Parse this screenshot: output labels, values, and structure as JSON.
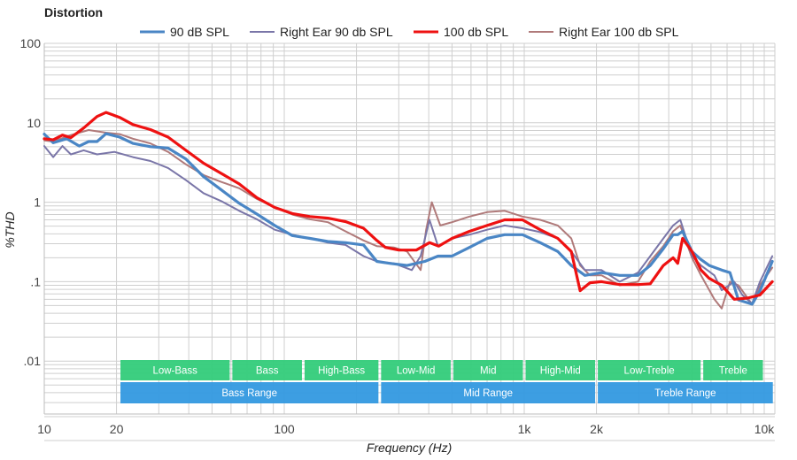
{
  "chart_data": {
    "type": "line",
    "title": "Distortion",
    "xlabel": "Frequency (Hz)",
    "ylabel": "%THD",
    "xscale": "log",
    "yscale": "log",
    "xlim": [
      10,
      11000
    ],
    "ylim": [
      0.001,
      100
    ],
    "grid": true,
    "legend_position": "top-center",
    "x_ticks": [
      {
        "value": 10,
        "label": "10"
      },
      {
        "value": 20,
        "label": "20"
      },
      {
        "value": 100,
        "label": "100"
      },
      {
        "value": 1000,
        "label": "1k"
      },
      {
        "value": 2000,
        "label": "2k"
      },
      {
        "value": 10000,
        "label": "10k"
      }
    ],
    "y_ticks": [
      {
        "value": 100,
        "label": "100"
      },
      {
        "value": 10,
        "label": "10"
      },
      {
        "value": 1,
        "label": "1"
      },
      {
        "value": 0.1,
        "label": ".1"
      },
      {
        "value": 0.01,
        "label": ".01"
      }
    ],
    "bands": [
      {
        "label": "Low-Bass",
        "from": 20,
        "to": 60,
        "row": "sub",
        "color": "#33cc7a"
      },
      {
        "label": "Bass",
        "from": 60,
        "to": 120,
        "row": "sub",
        "color": "#33cc7a"
      },
      {
        "label": "High-Bass",
        "from": 120,
        "to": 250,
        "row": "sub",
        "color": "#33cc7a"
      },
      {
        "label": "Low-Mid",
        "from": 250,
        "to": 500,
        "row": "sub",
        "color": "#33cc7a"
      },
      {
        "label": "Mid",
        "from": 500,
        "to": 1000,
        "row": "sub",
        "color": "#33cc7a"
      },
      {
        "label": "High-Mid",
        "from": 1000,
        "to": 2000,
        "row": "sub",
        "color": "#33cc7a"
      },
      {
        "label": "Low-Treble",
        "from": 2000,
        "to": 5500,
        "row": "sub",
        "color": "#33cc7a"
      },
      {
        "label": "Treble",
        "from": 5500,
        "to": 10000,
        "row": "sub",
        "color": "#33cc7a"
      },
      {
        "label": "Bass Range",
        "from": 20,
        "to": 250,
        "row": "main",
        "color": "#3399e0"
      },
      {
        "label": "Mid Range",
        "from": 250,
        "to": 2000,
        "row": "main",
        "color": "#3399e0"
      },
      {
        "label": "Treble Range",
        "from": 2000,
        "to": 11000,
        "row": "main",
        "color": "#3399e0"
      }
    ],
    "series": [
      {
        "name": "90 dB SPL",
        "color": "#4a86c5",
        "weight": "thick",
        "points": [
          [
            10,
            7.2
          ],
          [
            10.9,
            5.6
          ],
          [
            12.4,
            6.3
          ],
          [
            14,
            5.1
          ],
          [
            15.3,
            5.8
          ],
          [
            16.6,
            5.8
          ],
          [
            18.1,
            7.3
          ],
          [
            20.6,
            6.6
          ],
          [
            23.4,
            5.5
          ],
          [
            27.7,
            5.0
          ],
          [
            32.8,
            4.8
          ],
          [
            38.9,
            3.5
          ],
          [
            46.1,
            2.1
          ],
          [
            54.7,
            1.43
          ],
          [
            64.9,
            0.97
          ],
          [
            76.9,
            0.71
          ],
          [
            91.2,
            0.51
          ],
          [
            108,
            0.38
          ],
          [
            128,
            0.35
          ],
          [
            152,
            0.32
          ],
          [
            180,
            0.31
          ],
          [
            214,
            0.29
          ],
          [
            243,
            0.18
          ],
          [
            275,
            0.17
          ],
          [
            325,
            0.16
          ],
          [
            385,
            0.18
          ],
          [
            437,
            0.21
          ],
          [
            500,
            0.21
          ],
          [
            591,
            0.27
          ],
          [
            700,
            0.35
          ],
          [
            829,
            0.39
          ],
          [
            983,
            0.39
          ],
          [
            1165,
            0.31
          ],
          [
            1380,
            0.24
          ],
          [
            1570,
            0.16
          ],
          [
            1790,
            0.12
          ],
          [
            2100,
            0.13
          ],
          [
            2500,
            0.12
          ],
          [
            2980,
            0.12
          ],
          [
            3350,
            0.16
          ],
          [
            3800,
            0.26
          ],
          [
            4170,
            0.39
          ],
          [
            4360,
            0.39
          ],
          [
            4570,
            0.43
          ],
          [
            5000,
            0.24
          ],
          [
            5450,
            0.19
          ],
          [
            5900,
            0.16
          ],
          [
            6650,
            0.14
          ],
          [
            7200,
            0.13
          ],
          [
            7800,
            0.059
          ],
          [
            8900,
            0.052
          ],
          [
            9600,
            0.077
          ],
          [
            10800,
            0.18
          ]
        ]
      },
      {
        "name": "Right Ear 90 db SPL",
        "color": "#7a76a8",
        "weight": "thin",
        "points": [
          [
            10,
            5.1
          ],
          [
            10.9,
            3.7
          ],
          [
            11.9,
            5.1
          ],
          [
            12.9,
            4.0
          ],
          [
            14.6,
            4.5
          ],
          [
            16.6,
            4.0
          ],
          [
            19.6,
            4.3
          ],
          [
            23.4,
            3.7
          ],
          [
            27.7,
            3.3
          ],
          [
            32.8,
            2.7
          ],
          [
            38.9,
            1.9
          ],
          [
            46.1,
            1.3
          ],
          [
            54.7,
            1.03
          ],
          [
            64.9,
            0.78
          ],
          [
            76.9,
            0.61
          ],
          [
            91.2,
            0.45
          ],
          [
            108,
            0.39
          ],
          [
            128,
            0.35
          ],
          [
            152,
            0.31
          ],
          [
            180,
            0.29
          ],
          [
            214,
            0.21
          ],
          [
            243,
            0.18
          ],
          [
            286,
            0.17
          ],
          [
            340,
            0.14
          ],
          [
            370,
            0.21
          ],
          [
            403,
            0.6
          ],
          [
            437,
            0.28
          ],
          [
            500,
            0.35
          ],
          [
            591,
            0.39
          ],
          [
            700,
            0.45
          ],
          [
            829,
            0.51
          ],
          [
            983,
            0.47
          ],
          [
            1165,
            0.42
          ],
          [
            1380,
            0.35
          ],
          [
            1570,
            0.24
          ],
          [
            1790,
            0.14
          ],
          [
            2100,
            0.14
          ],
          [
            2500,
            0.1
          ],
          [
            2980,
            0.13
          ],
          [
            3350,
            0.21
          ],
          [
            3800,
            0.35
          ],
          [
            4170,
            0.51
          ],
          [
            4470,
            0.6
          ],
          [
            5000,
            0.21
          ],
          [
            5450,
            0.16
          ],
          [
            6200,
            0.12
          ],
          [
            6650,
            0.078
          ],
          [
            7500,
            0.1
          ],
          [
            8100,
            0.068
          ],
          [
            8900,
            0.053
          ],
          [
            9600,
            0.1
          ],
          [
            10800,
            0.21
          ]
        ]
      },
      {
        "name": "100 db SPL",
        "color": "#ee1111",
        "weight": "thick",
        "points": [
          [
            10,
            6.3
          ],
          [
            10.9,
            6.1
          ],
          [
            11.9,
            7.0
          ],
          [
            12.9,
            6.5
          ],
          [
            14.6,
            8.6
          ],
          [
            16.6,
            12
          ],
          [
            18.1,
            13.5
          ],
          [
            20.6,
            11.7
          ],
          [
            23.4,
            9.5
          ],
          [
            27.7,
            8.2
          ],
          [
            32.8,
            6.6
          ],
          [
            38.9,
            4.5
          ],
          [
            46.1,
            3.1
          ],
          [
            54.7,
            2.3
          ],
          [
            64.9,
            1.7
          ],
          [
            76.9,
            1.14
          ],
          [
            91.2,
            0.86
          ],
          [
            108,
            0.72
          ],
          [
            128,
            0.66
          ],
          [
            152,
            0.63
          ],
          [
            180,
            0.57
          ],
          [
            214,
            0.47
          ],
          [
            243,
            0.33
          ],
          [
            264,
            0.27
          ],
          [
            300,
            0.25
          ],
          [
            355,
            0.25
          ],
          [
            403,
            0.31
          ],
          [
            440,
            0.28
          ],
          [
            500,
            0.35
          ],
          [
            591,
            0.43
          ],
          [
            700,
            0.51
          ],
          [
            829,
            0.6
          ],
          [
            983,
            0.6
          ],
          [
            1165,
            0.45
          ],
          [
            1380,
            0.35
          ],
          [
            1570,
            0.24
          ],
          [
            1710,
            0.077
          ],
          [
            1880,
            0.097
          ],
          [
            2100,
            0.1
          ],
          [
            2500,
            0.092
          ],
          [
            2980,
            0.092
          ],
          [
            3350,
            0.094
          ],
          [
            3800,
            0.16
          ],
          [
            4170,
            0.2
          ],
          [
            4360,
            0.17
          ],
          [
            4570,
            0.35
          ],
          [
            5000,
            0.24
          ],
          [
            5450,
            0.14
          ],
          [
            5900,
            0.11
          ],
          [
            6650,
            0.09
          ],
          [
            7500,
            0.06
          ],
          [
            8500,
            0.062
          ],
          [
            9600,
            0.068
          ],
          [
            10800,
            0.1
          ]
        ]
      },
      {
        "name": "Right Ear 100 db SPL",
        "color": "#b07a7a",
        "weight": "thin",
        "points": [
          [
            10,
            6.0
          ],
          [
            10.9,
            5.8
          ],
          [
            12.9,
            7.0
          ],
          [
            15.3,
            8.1
          ],
          [
            18.1,
            7.5
          ],
          [
            20.6,
            7.2
          ],
          [
            23.4,
            6.3
          ],
          [
            27.7,
            5.5
          ],
          [
            32.8,
            4.3
          ],
          [
            38.9,
            3.0
          ],
          [
            46.1,
            2.2
          ],
          [
            54.7,
            1.8
          ],
          [
            64.9,
            1.5
          ],
          [
            76.9,
            1.1
          ],
          [
            91.2,
            0.86
          ],
          [
            108,
            0.7
          ],
          [
            128,
            0.61
          ],
          [
            152,
            0.56
          ],
          [
            180,
            0.43
          ],
          [
            214,
            0.33
          ],
          [
            243,
            0.28
          ],
          [
            286,
            0.27
          ],
          [
            325,
            0.24
          ],
          [
            370,
            0.14
          ],
          [
            390,
            0.45
          ],
          [
            412,
            1.0
          ],
          [
            447,
            0.51
          ],
          [
            500,
            0.56
          ],
          [
            591,
            0.66
          ],
          [
            700,
            0.75
          ],
          [
            829,
            0.78
          ],
          [
            983,
            0.66
          ],
          [
            1165,
            0.6
          ],
          [
            1380,
            0.51
          ],
          [
            1570,
            0.35
          ],
          [
            1710,
            0.16
          ],
          [
            1880,
            0.12
          ],
          [
            2100,
            0.12
          ],
          [
            2500,
            0.09
          ],
          [
            2980,
            0.1
          ],
          [
            3350,
            0.18
          ],
          [
            3800,
            0.28
          ],
          [
            4170,
            0.43
          ],
          [
            4470,
            0.51
          ],
          [
            5000,
            0.2
          ],
          [
            5450,
            0.12
          ],
          [
            6200,
            0.06
          ],
          [
            6650,
            0.046
          ],
          [
            7200,
            0.1
          ],
          [
            7800,
            0.09
          ],
          [
            8900,
            0.052
          ],
          [
            9600,
            0.09
          ],
          [
            10800,
            0.15
          ]
        ]
      }
    ]
  }
}
